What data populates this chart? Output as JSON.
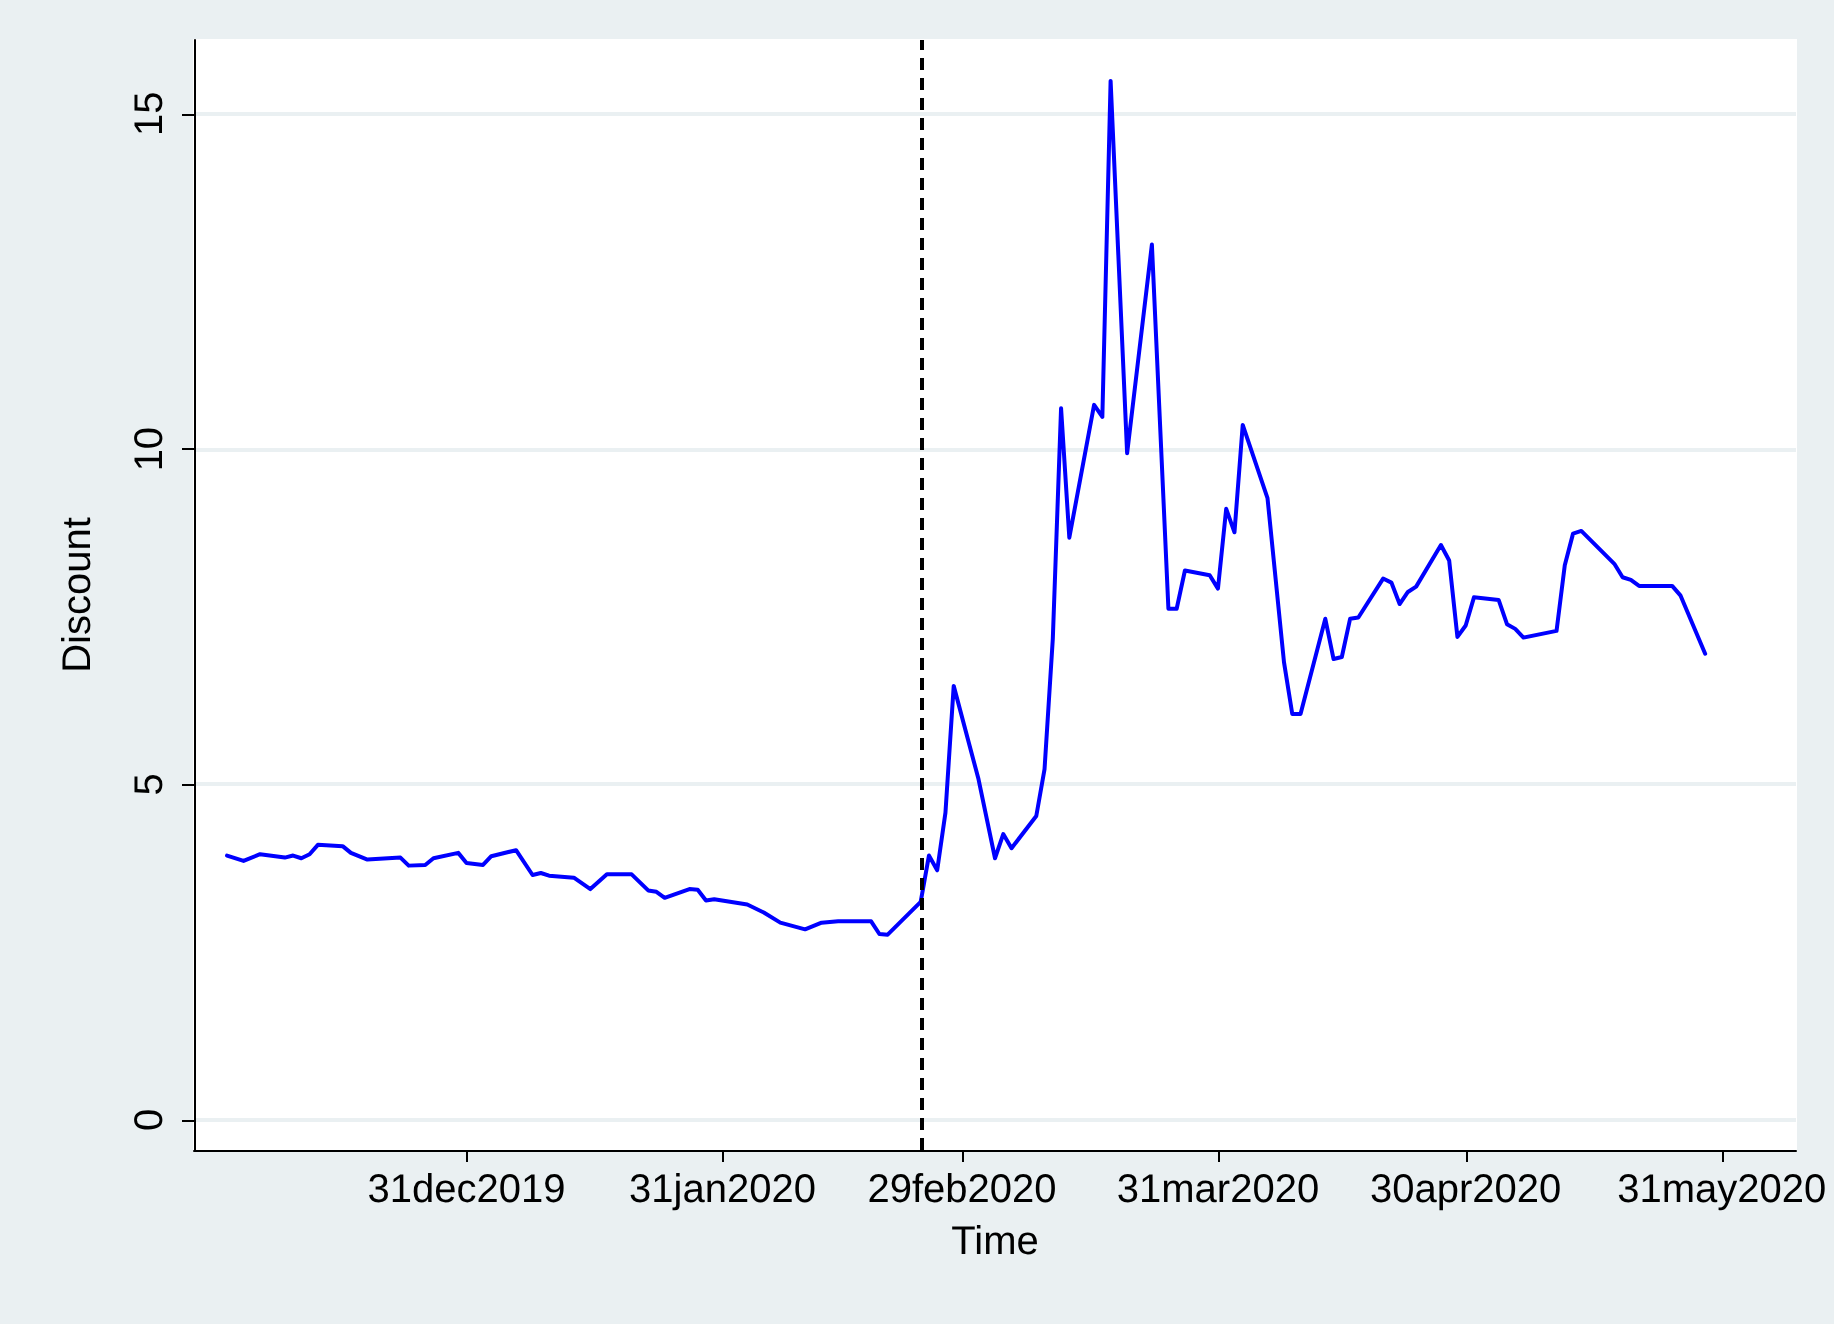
{
  "chart_data": {
    "type": "line",
    "xlabel": "Time",
    "ylabel": "Discount",
    "x": [
      "2019-12-02",
      "2019-12-04",
      "2019-12-06",
      "2019-12-09",
      "2019-12-10",
      "2019-12-11",
      "2019-12-12",
      "2019-12-13",
      "2019-12-16",
      "2019-12-17",
      "2019-12-19",
      "2019-12-23",
      "2019-12-24",
      "2019-12-26",
      "2019-12-27",
      "2019-12-30",
      "2019-12-31",
      "2020-01-02",
      "2020-01-03",
      "2020-01-06",
      "2020-01-08",
      "2020-01-09",
      "2020-01-10",
      "2020-01-13",
      "2020-01-15",
      "2020-01-17",
      "2020-01-20",
      "2020-01-22",
      "2020-01-23",
      "2020-01-24",
      "2020-01-27",
      "2020-01-28",
      "2020-01-29",
      "2020-01-30",
      "2020-02-03",
      "2020-02-05",
      "2020-02-07",
      "2020-02-10",
      "2020-02-12",
      "2020-02-14",
      "2020-02-18",
      "2020-02-19",
      "2020-02-20",
      "2020-02-24",
      "2020-02-25",
      "2020-02-26",
      "2020-02-27",
      "2020-02-28",
      "2020-03-02",
      "2020-03-04",
      "2020-03-05",
      "2020-03-06",
      "2020-03-09",
      "2020-03-10",
      "2020-03-11",
      "2020-03-12",
      "2020-03-13",
      "2020-03-16",
      "2020-03-17",
      "2020-03-18",
      "2020-03-20",
      "2020-03-23",
      "2020-03-25",
      "2020-03-26",
      "2020-03-27",
      "2020-03-30",
      "2020-03-31",
      "2020-04-01",
      "2020-04-02",
      "2020-04-03",
      "2020-04-06",
      "2020-04-08",
      "2020-04-09",
      "2020-04-10",
      "2020-04-13",
      "2020-04-14",
      "2020-04-15",
      "2020-04-16",
      "2020-04-17",
      "2020-04-20",
      "2020-04-21",
      "2020-04-22",
      "2020-04-23",
      "2020-04-24",
      "2020-04-27",
      "2020-04-28",
      "2020-04-29",
      "2020-04-30",
      "2020-05-01",
      "2020-05-04",
      "2020-05-05",
      "2020-05-06",
      "2020-05-07",
      "2020-05-11",
      "2020-05-12",
      "2020-05-13",
      "2020-05-14",
      "2020-05-18",
      "2020-05-19",
      "2020-05-20",
      "2020-05-21",
      "2020-05-25",
      "2020-05-26",
      "2020-05-29"
    ],
    "series": [
      {
        "color": "#0000ff",
        "values": [
          3.94,
          3.86,
          3.96,
          3.91,
          3.94,
          3.9,
          3.96,
          4.1,
          4.08,
          3.98,
          3.88,
          3.91,
          3.79,
          3.8,
          3.9,
          3.98,
          3.83,
          3.8,
          3.93,
          4.02,
          3.65,
          3.68,
          3.64,
          3.61,
          3.44,
          3.66,
          3.66,
          3.42,
          3.4,
          3.31,
          3.44,
          3.43,
          3.27,
          3.29,
          3.21,
          3.09,
          2.94,
          2.84,
          2.94,
          2.96,
          2.96,
          2.77,
          2.76,
          3.25,
          3.94,
          3.72,
          4.58,
          6.47,
          5.08,
          3.9,
          4.26,
          4.05,
          4.53,
          5.23,
          7.17,
          10.61,
          8.68,
          10.66,
          10.48,
          15.49,
          9.94,
          13.05,
          7.62,
          7.62,
          8.19,
          8.12,
          7.92,
          9.11,
          8.76,
          10.36,
          9.27,
          6.82,
          6.05,
          6.05,
          7.47,
          6.87,
          6.9,
          7.47,
          7.49,
          8.07,
          8.01,
          7.69,
          7.87,
          7.95,
          8.57,
          8.34,
          7.2,
          7.37,
          7.79,
          7.75,
          7.39,
          7.32,
          7.19,
          7.29,
          8.27,
          8.74,
          8.78,
          8.29,
          8.09,
          8.05,
          7.96,
          7.96,
          7.82,
          6.95
        ]
      }
    ],
    "xlim": [
      "2019-11-28",
      "2020-06-09"
    ],
    "xticks": [
      {
        "value": "2019-12-31",
        "label": "31dec2019"
      },
      {
        "value": "2020-01-31",
        "label": "31jan2020"
      },
      {
        "value": "2020-02-29",
        "label": "29feb2020"
      },
      {
        "value": "2020-03-31",
        "label": "31mar2020"
      },
      {
        "value": "2020-04-30",
        "label": "30apr2020"
      },
      {
        "value": "2020-05-31",
        "label": "31may2020"
      }
    ],
    "ylim": [
      -0.45,
      16.1
    ],
    "yticks": [
      0,
      5,
      10,
      15
    ],
    "grid": "y",
    "marker": "none",
    "line_style": "solid",
    "ref_lines": [
      {
        "axis": "x",
        "value": "2020-02-24",
        "color": "#000000",
        "line_style": "dashed"
      }
    ]
  }
}
